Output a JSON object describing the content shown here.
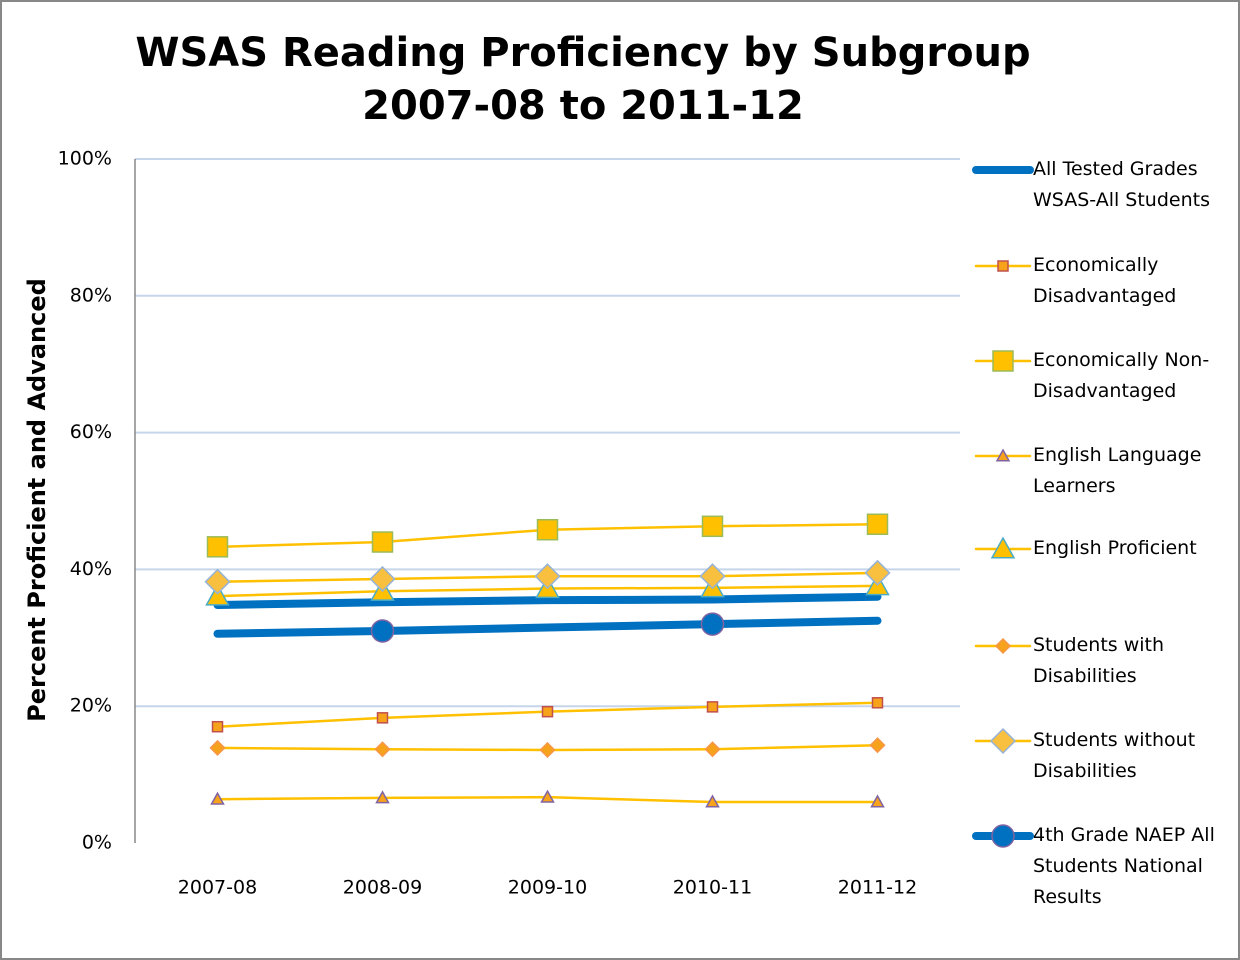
{
  "chart_data": {
    "type": "line",
    "title": "WSAS Reading Proficiency by Subgroup",
    "subtitle": "2007-08 to 2011-12",
    "y_label": "Percent Proficient and Advanced",
    "categories": [
      "2007-08",
      "2008-09",
      "2009-10",
      "2010-11",
      "2011-12"
    ],
    "ylim": [
      0,
      100
    ],
    "yticks": [
      {
        "value": 0,
        "label": "0%"
      },
      {
        "value": 20,
        "label": "20%"
      },
      {
        "value": 40,
        "label": "40%"
      },
      {
        "value": 60,
        "label": "60%"
      },
      {
        "value": 80,
        "label": "80%"
      },
      {
        "value": 100,
        "label": "100%"
      }
    ],
    "grid": true,
    "legend": "right",
    "series": [
      {
        "name": "All Tested Grades WSAS-All Students",
        "color": "#0070c0",
        "line_style": "thick",
        "marker": "none",
        "values": [
          34.8,
          35.2,
          35.5,
          35.6,
          36.0
        ]
      },
      {
        "name": "Economically Disadvantaged",
        "color": "#ffc000",
        "line_style": "thin",
        "marker": "square",
        "marker_fill": "#f7a21b",
        "marker_edge": "#c0504d",
        "values": [
          17.0,
          18.3,
          19.2,
          19.9,
          20.5
        ]
      },
      {
        "name": "Economically Non-Disadvantaged",
        "color": "#ffc000",
        "line_style": "thin",
        "marker": "large square",
        "marker_fill": "#ffc000",
        "marker_edge": "#9bbb59",
        "values": [
          43.3,
          44.0,
          45.8,
          46.3,
          46.6
        ]
      },
      {
        "name": "English Language Learners",
        "color": "#ffc000",
        "line_style": "thin",
        "marker": "triangle",
        "marker_fill": "#f7a21b",
        "marker_edge": "#8064a2",
        "values": [
          6.4,
          6.6,
          6.7,
          6.0,
          6.0
        ]
      },
      {
        "name": "English Proficient",
        "color": "#ffc000",
        "line_style": "thin",
        "marker": "large triangle",
        "marker_fill": "#ffc000",
        "marker_edge": "#4bacc6",
        "values": [
          36.1,
          36.8,
          37.2,
          37.3,
          37.6
        ]
      },
      {
        "name": "Students with Disabilities",
        "color": "#ffc000",
        "line_style": "thin",
        "marker": "diamond",
        "marker_fill": "#f7a21b",
        "marker_edge": "#f79646",
        "values": [
          13.9,
          13.7,
          13.6,
          13.7,
          14.3
        ]
      },
      {
        "name": "Students without Disabilities",
        "color": "#ffc000",
        "line_style": "thin",
        "marker": "large diamond",
        "marker_fill": "#f9c040",
        "marker_edge": "#95b3d7",
        "values": [
          38.2,
          38.6,
          39.0,
          39.0,
          39.5
        ]
      },
      {
        "name": "4th Grade NAEP All Students National Results",
        "color": "#0070c0",
        "line_style": "thick",
        "marker": "circle",
        "marker_fill": "#0070c0",
        "marker_edge": "#8064a2",
        "marker_indices": [
          1,
          3
        ],
        "values": [
          30.6,
          31.0,
          31.5,
          32.0,
          32.5
        ]
      }
    ]
  }
}
